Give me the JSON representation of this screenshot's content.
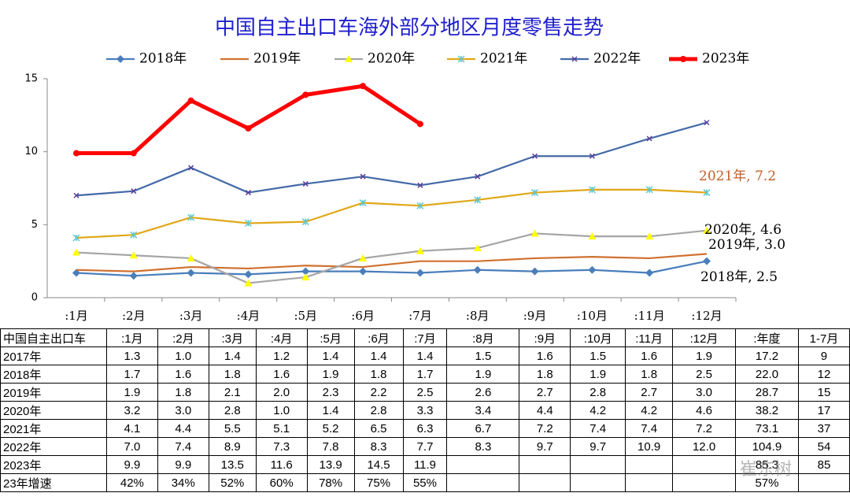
{
  "chart_data": {
    "type": "line",
    "title": "中国自主出口车海外部分地区月度零售走势",
    "categories": [
      ":1月",
      ":2月",
      ":3月",
      ":4月",
      ":5月",
      ":6月",
      ":7月",
      ":8月",
      ":9月",
      ":10月",
      ":11月",
      ":12月"
    ],
    "ylim": [
      0,
      15
    ],
    "yticks": [
      0,
      5,
      10,
      15
    ],
    "grid": false,
    "legend": "top",
    "series": [
      {
        "name": "2018年",
        "color": "#4a7ebb",
        "marker": "diamond",
        "marker_color": "#4a7ebb",
        "values": [
          1.7,
          1.5,
          1.7,
          1.6,
          1.8,
          1.8,
          1.7,
          1.9,
          1.8,
          1.9,
          1.7,
          2.5
        ],
        "value_labels": [
          null,
          null,
          null,
          null,
          null,
          null,
          null,
          null,
          null,
          null,
          null,
          "2018年, 2.5"
        ]
      },
      {
        "name": "2019年",
        "color": "#d0702f",
        "marker": "none",
        "marker_color": "#d0702f",
        "values": [
          1.9,
          1.8,
          2.1,
          2.0,
          2.2,
          2.1,
          2.5,
          2.5,
          2.7,
          2.8,
          2.7,
          3.0
        ],
        "value_labels": [
          null,
          null,
          null,
          null,
          null,
          null,
          null,
          null,
          null,
          null,
          null,
          "2019年, 3.0"
        ]
      },
      {
        "name": "2020年",
        "color": "#a5a5a5",
        "marker": "triangle",
        "marker_color": "#ffff00",
        "values": [
          3.1,
          2.9,
          2.7,
          1.0,
          1.4,
          2.7,
          3.2,
          3.4,
          4.4,
          4.2,
          4.2,
          4.6
        ],
        "value_labels": [
          null,
          null,
          null,
          null,
          null,
          null,
          null,
          null,
          null,
          null,
          null,
          "2020年, 4.6"
        ]
      },
      {
        "name": "2021年",
        "color": "#e0a818",
        "marker": "star",
        "marker_color": "#5fc8d0",
        "values": [
          4.1,
          4.3,
          5.5,
          5.1,
          5.2,
          6.5,
          6.3,
          6.7,
          7.2,
          7.4,
          7.4,
          7.2
        ],
        "value_labels": [
          null,
          null,
          null,
          null,
          null,
          null,
          null,
          null,
          null,
          null,
          null,
          "2021年, 7.2"
        ]
      },
      {
        "name": "2022年",
        "color": "#4369a6",
        "marker": "x",
        "marker_color": "#5a3e9a",
        "values": [
          7.0,
          7.3,
          8.9,
          7.2,
          7.8,
          8.3,
          7.7,
          8.3,
          9.7,
          9.7,
          10.9,
          12.0
        ]
      },
      {
        "name": "2023年",
        "color": "#ff0000",
        "marker": "circle",
        "marker_color": "#ff0000",
        "values": [
          9.9,
          9.9,
          13.5,
          11.6,
          13.9,
          14.5,
          11.9,
          null,
          null,
          null,
          null,
          null
        ]
      }
    ]
  },
  "table": {
    "header": [
      "中国自主出口车",
      ":1月",
      ":2月",
      ":3月",
      ":4月",
      ":5月",
      ":6月",
      ":7月",
      ":8月",
      ":9月",
      ":10月",
      ":11月",
      ":12月",
      ":年度",
      "1-7月"
    ],
    "rows": [
      [
        "2017年",
        "1.3",
        "1.0",
        "1.4",
        "1.2",
        "1.4",
        "1.4",
        "1.4",
        "1.5",
        "1.6",
        "1.5",
        "1.6",
        "1.9",
        "17.2",
        "9"
      ],
      [
        "2018年",
        "1.7",
        "1.6",
        "1.8",
        "1.6",
        "1.9",
        "1.8",
        "1.7",
        "1.9",
        "1.8",
        "1.9",
        "1.8",
        "2.5",
        "22.0",
        "12"
      ],
      [
        "2019年",
        "1.9",
        "1.8",
        "2.1",
        "2.0",
        "2.3",
        "2.2",
        "2.5",
        "2.6",
        "2.7",
        "2.8",
        "2.7",
        "3.0",
        "28.7",
        "15"
      ],
      [
        "2020年",
        "3.2",
        "3.0",
        "2.8",
        "1.0",
        "1.4",
        "2.8",
        "3.3",
        "3.4",
        "4.4",
        "4.2",
        "4.2",
        "4.6",
        "38.2",
        "17"
      ],
      [
        "2021年",
        "4.1",
        "4.4",
        "5.5",
        "5.1",
        "5.2",
        "6.5",
        "6.3",
        "6.7",
        "7.2",
        "7.4",
        "7.4",
        "7.2",
        "73.1",
        "37"
      ],
      [
        "2022年",
        "7.0",
        "7.4",
        "8.9",
        "7.3",
        "7.8",
        "8.3",
        "7.7",
        "8.3",
        "9.7",
        "9.7",
        "10.9",
        "12.0",
        "104.9",
        "54"
      ],
      [
        "2023年",
        "9.9",
        "9.9",
        "13.5",
        "11.6",
        "13.9",
        "14.5",
        "11.9",
        null,
        null,
        null,
        null,
        null,
        "85.3",
        "85"
      ],
      [
        "23年增速",
        "42%",
        "34%",
        "52%",
        "60%",
        "78%",
        "75%",
        "55%",
        null,
        null,
        null,
        null,
        null,
        "57%",
        null
      ]
    ]
  },
  "watermark": "崔东树"
}
